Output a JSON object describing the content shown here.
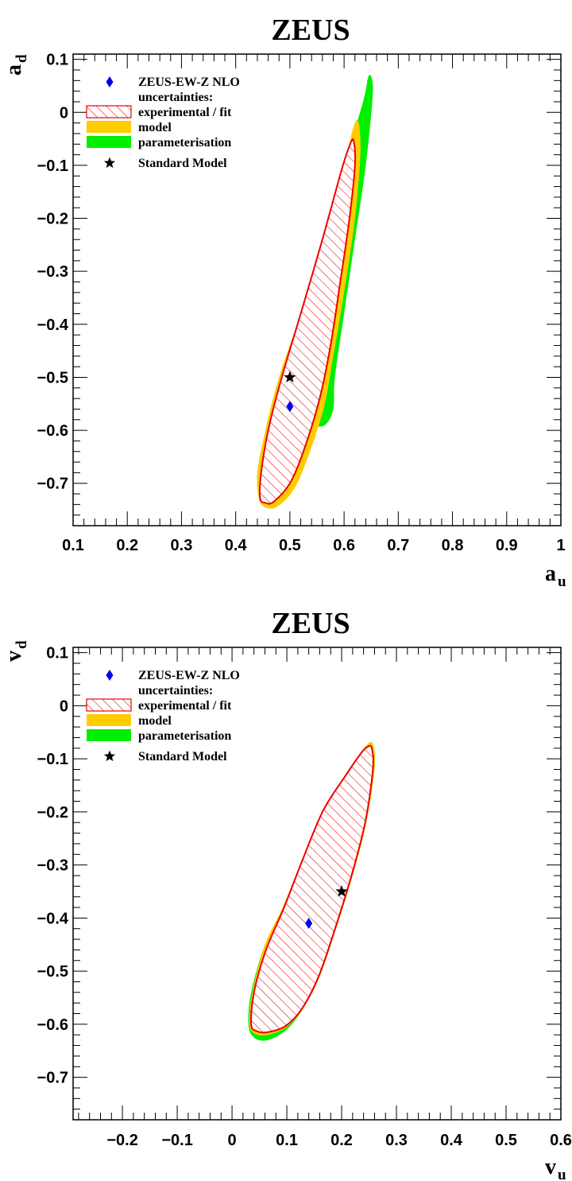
{
  "chart_data": [
    {
      "type": "scatter",
      "title": "ZEUS",
      "xlabel": {
        "main": "a",
        "sub": "u"
      },
      "ylabel": {
        "main": "a",
        "sub": "d"
      },
      "xlim": [
        0.1,
        1.0
      ],
      "ylim": [
        -0.78,
        0.11
      ],
      "x_ticks": [
        0.1,
        0.2,
        0.3,
        0.4,
        0.5,
        0.6,
        0.7,
        0.8,
        0.9,
        1.0
      ],
      "x_tick_labels": [
        "0.1",
        "0.2",
        "0.3",
        "0.4",
        "0.5",
        "0.6",
        "0.7",
        "0.8",
        "0.9",
        "1"
      ],
      "y_ticks": [
        0.1,
        0.0,
        -0.1,
        -0.2,
        -0.3,
        -0.4,
        -0.5,
        -0.6,
        -0.7
      ],
      "y_tick_labels": [
        "0.1",
        "0",
        "−0.1",
        "−0.2",
        "−0.3",
        "−0.4",
        "−0.5",
        "−0.6",
        "−0.7"
      ],
      "grid": false,
      "legend": {
        "placement": "top-left",
        "entries": [
          {
            "label": "ZEUS-EW-Z NLO",
            "marker": "diamond",
            "color": "#0000ee"
          },
          {
            "label": "uncertainties:",
            "marker": "none"
          },
          {
            "label": "experimental / fit",
            "marker": "hatched-box",
            "color": "#ee0000"
          },
          {
            "label": "model",
            "marker": "box",
            "color": "#ffcc00"
          },
          {
            "label": "parameterisation",
            "marker": "box",
            "color": "#00ee00"
          },
          {
            "label": "Standard Model",
            "marker": "star",
            "color": "#000000"
          }
        ]
      },
      "points": [
        {
          "name": "ZEUS-EW-Z NLO",
          "x": 0.5,
          "y": -0.555,
          "marker": "diamond",
          "color": "#0000ee"
        },
        {
          "name": "Standard Model",
          "x": 0.5,
          "y": -0.5,
          "marker": "star",
          "color": "#000000"
        }
      ],
      "contours": [
        {
          "name": "parameterisation",
          "color": "#00ee00",
          "points": [
            [
              0.443,
              -0.725
            ],
            [
              0.44,
              -0.68
            ],
            [
              0.455,
              -0.6
            ],
            [
              0.48,
              -0.5
            ],
            [
              0.52,
              -0.38
            ],
            [
              0.56,
              -0.24
            ],
            [
              0.6,
              -0.1
            ],
            [
              0.635,
              0.02
            ],
            [
              0.645,
              0.068
            ],
            [
              0.652,
              0.06
            ],
            [
              0.652,
              0.02
            ],
            [
              0.64,
              -0.1
            ],
            [
              0.62,
              -0.24
            ],
            [
              0.6,
              -0.38
            ],
            [
              0.583,
              -0.5
            ],
            [
              0.58,
              -0.56
            ],
            [
              0.565,
              -0.59
            ],
            [
              0.535,
              -0.6
            ],
            [
              0.505,
              -0.66
            ],
            [
              0.48,
              -0.725
            ],
            [
              0.465,
              -0.745
            ],
            [
              0.45,
              -0.742
            ]
          ]
        },
        {
          "name": "model",
          "color": "#ffcc00",
          "points": [
            [
              0.443,
              -0.73
            ],
            [
              0.44,
              -0.68
            ],
            [
              0.455,
              -0.6
            ],
            [
              0.48,
              -0.5
            ],
            [
              0.52,
              -0.38
            ],
            [
              0.56,
              -0.24
            ],
            [
              0.6,
              -0.1
            ],
            [
              0.618,
              -0.025
            ],
            [
              0.627,
              -0.02
            ],
            [
              0.63,
              -0.08
            ],
            [
              0.62,
              -0.2
            ],
            [
              0.6,
              -0.34
            ],
            [
              0.58,
              -0.46
            ],
            [
              0.562,
              -0.56
            ],
            [
              0.53,
              -0.66
            ],
            [
              0.505,
              -0.715
            ],
            [
              0.475,
              -0.745
            ],
            [
              0.455,
              -0.745
            ]
          ]
        },
        {
          "name": "experimental / fit",
          "color": "#ee0000",
          "hatched": true,
          "points": [
            [
              0.445,
              -0.728
            ],
            [
              0.447,
              -0.68
            ],
            [
              0.46,
              -0.6
            ],
            [
              0.485,
              -0.5
            ],
            [
              0.52,
              -0.38
            ],
            [
              0.56,
              -0.24
            ],
            [
              0.595,
              -0.11
            ],
            [
              0.612,
              -0.058
            ],
            [
              0.618,
              -0.055
            ],
            [
              0.62,
              -0.1
            ],
            [
              0.61,
              -0.2
            ],
            [
              0.593,
              -0.32
            ],
            [
              0.575,
              -0.44
            ],
            [
              0.555,
              -0.54
            ],
            [
              0.525,
              -0.64
            ],
            [
              0.5,
              -0.7
            ],
            [
              0.47,
              -0.735
            ],
            [
              0.455,
              -0.737
            ]
          ]
        }
      ]
    },
    {
      "type": "scatter",
      "title": "ZEUS",
      "xlabel": {
        "main": "v",
        "sub": "u"
      },
      "ylabel": {
        "main": "v",
        "sub": "d"
      },
      "xlim": [
        -0.29,
        0.6
      ],
      "ylim": [
        -0.78,
        0.11
      ],
      "x_ticks": [
        -0.2,
        -0.1,
        0.0,
        0.1,
        0.2,
        0.3,
        0.4,
        0.5,
        0.6
      ],
      "x_tick_labels": [
        "−0.2",
        "−0.1",
        "0",
        "0.1",
        "0.2",
        "0.3",
        "0.4",
        "0.5",
        "0.6"
      ],
      "y_ticks": [
        0.1,
        0.0,
        -0.1,
        -0.2,
        -0.3,
        -0.4,
        -0.5,
        -0.6,
        -0.7
      ],
      "y_tick_labels": [
        "0.1",
        "0",
        "−0.1",
        "−0.2",
        "−0.3",
        "−0.4",
        "−0.5",
        "−0.6",
        "−0.7"
      ],
      "grid": false,
      "legend": {
        "placement": "top-left",
        "entries": [
          {
            "label": "ZEUS-EW-Z NLO",
            "marker": "diamond",
            "color": "#0000ee"
          },
          {
            "label": "uncertainties:",
            "marker": "none"
          },
          {
            "label": "experimental / fit",
            "marker": "hatched-box",
            "color": "#ee0000"
          },
          {
            "label": "model",
            "marker": "box",
            "color": "#ffcc00"
          },
          {
            "label": "parameterisation",
            "marker": "box",
            "color": "#00ee00"
          },
          {
            "label": "Standard Model",
            "marker": "star",
            "color": "#000000"
          }
        ]
      },
      "points": [
        {
          "name": "ZEUS-EW-Z NLO",
          "x": 0.14,
          "y": -0.41,
          "marker": "diamond",
          "color": "#0000ee"
        },
        {
          "name": "Standard Model",
          "x": 0.2,
          "y": -0.35,
          "marker": "star",
          "color": "#000000"
        }
      ],
      "contours": [
        {
          "name": "parameterisation",
          "color": "#00ee00",
          "points": [
            [
              0.03,
              -0.6
            ],
            [
              0.035,
              -0.54
            ],
            [
              0.06,
              -0.45
            ],
            [
              0.09,
              -0.39
            ],
            [
              0.12,
              -0.31
            ],
            [
              0.16,
              -0.21
            ],
            [
              0.2,
              -0.14
            ],
            [
              0.235,
              -0.09
            ],
            [
              0.25,
              -0.07
            ],
            [
              0.258,
              -0.075
            ],
            [
              0.26,
              -0.12
            ],
            [
              0.245,
              -0.22
            ],
            [
              0.22,
              -0.32
            ],
            [
              0.19,
              -0.42
            ],
            [
              0.16,
              -0.51
            ],
            [
              0.13,
              -0.57
            ],
            [
              0.1,
              -0.61
            ],
            [
              0.065,
              -0.63
            ],
            [
              0.04,
              -0.625
            ]
          ]
        },
        {
          "name": "model",
          "color": "#ffcc00",
          "points": [
            [
              0.032,
              -0.6
            ],
            [
              0.037,
              -0.54
            ],
            [
              0.06,
              -0.45
            ],
            [
              0.09,
              -0.385
            ],
            [
              0.12,
              -0.31
            ],
            [
              0.16,
              -0.21
            ],
            [
              0.2,
              -0.14
            ],
            [
              0.235,
              -0.088
            ],
            [
              0.25,
              -0.07
            ],
            [
              0.258,
              -0.075
            ],
            [
              0.26,
              -0.12
            ],
            [
              0.245,
              -0.22
            ],
            [
              0.22,
              -0.32
            ],
            [
              0.19,
              -0.42
            ],
            [
              0.16,
              -0.51
            ],
            [
              0.13,
              -0.57
            ],
            [
              0.1,
              -0.605
            ],
            [
              0.065,
              -0.62
            ],
            [
              0.042,
              -0.618
            ]
          ]
        },
        {
          "name": "experimental / fit",
          "color": "#ee0000",
          "hatched": true,
          "points": [
            [
              0.035,
              -0.6
            ],
            [
              0.04,
              -0.54
            ],
            [
              0.062,
              -0.46
            ],
            [
              0.095,
              -0.38
            ],
            [
              0.125,
              -0.3
            ],
            [
              0.165,
              -0.2
            ],
            [
              0.205,
              -0.135
            ],
            [
              0.235,
              -0.09
            ],
            [
              0.248,
              -0.077
            ],
            [
              0.255,
              -0.08
            ],
            [
              0.257,
              -0.12
            ],
            [
              0.243,
              -0.22
            ],
            [
              0.218,
              -0.32
            ],
            [
              0.188,
              -0.42
            ],
            [
              0.158,
              -0.51
            ],
            [
              0.128,
              -0.57
            ],
            [
              0.098,
              -0.603
            ],
            [
              0.065,
              -0.615
            ],
            [
              0.045,
              -0.613
            ]
          ]
        }
      ]
    }
  ]
}
